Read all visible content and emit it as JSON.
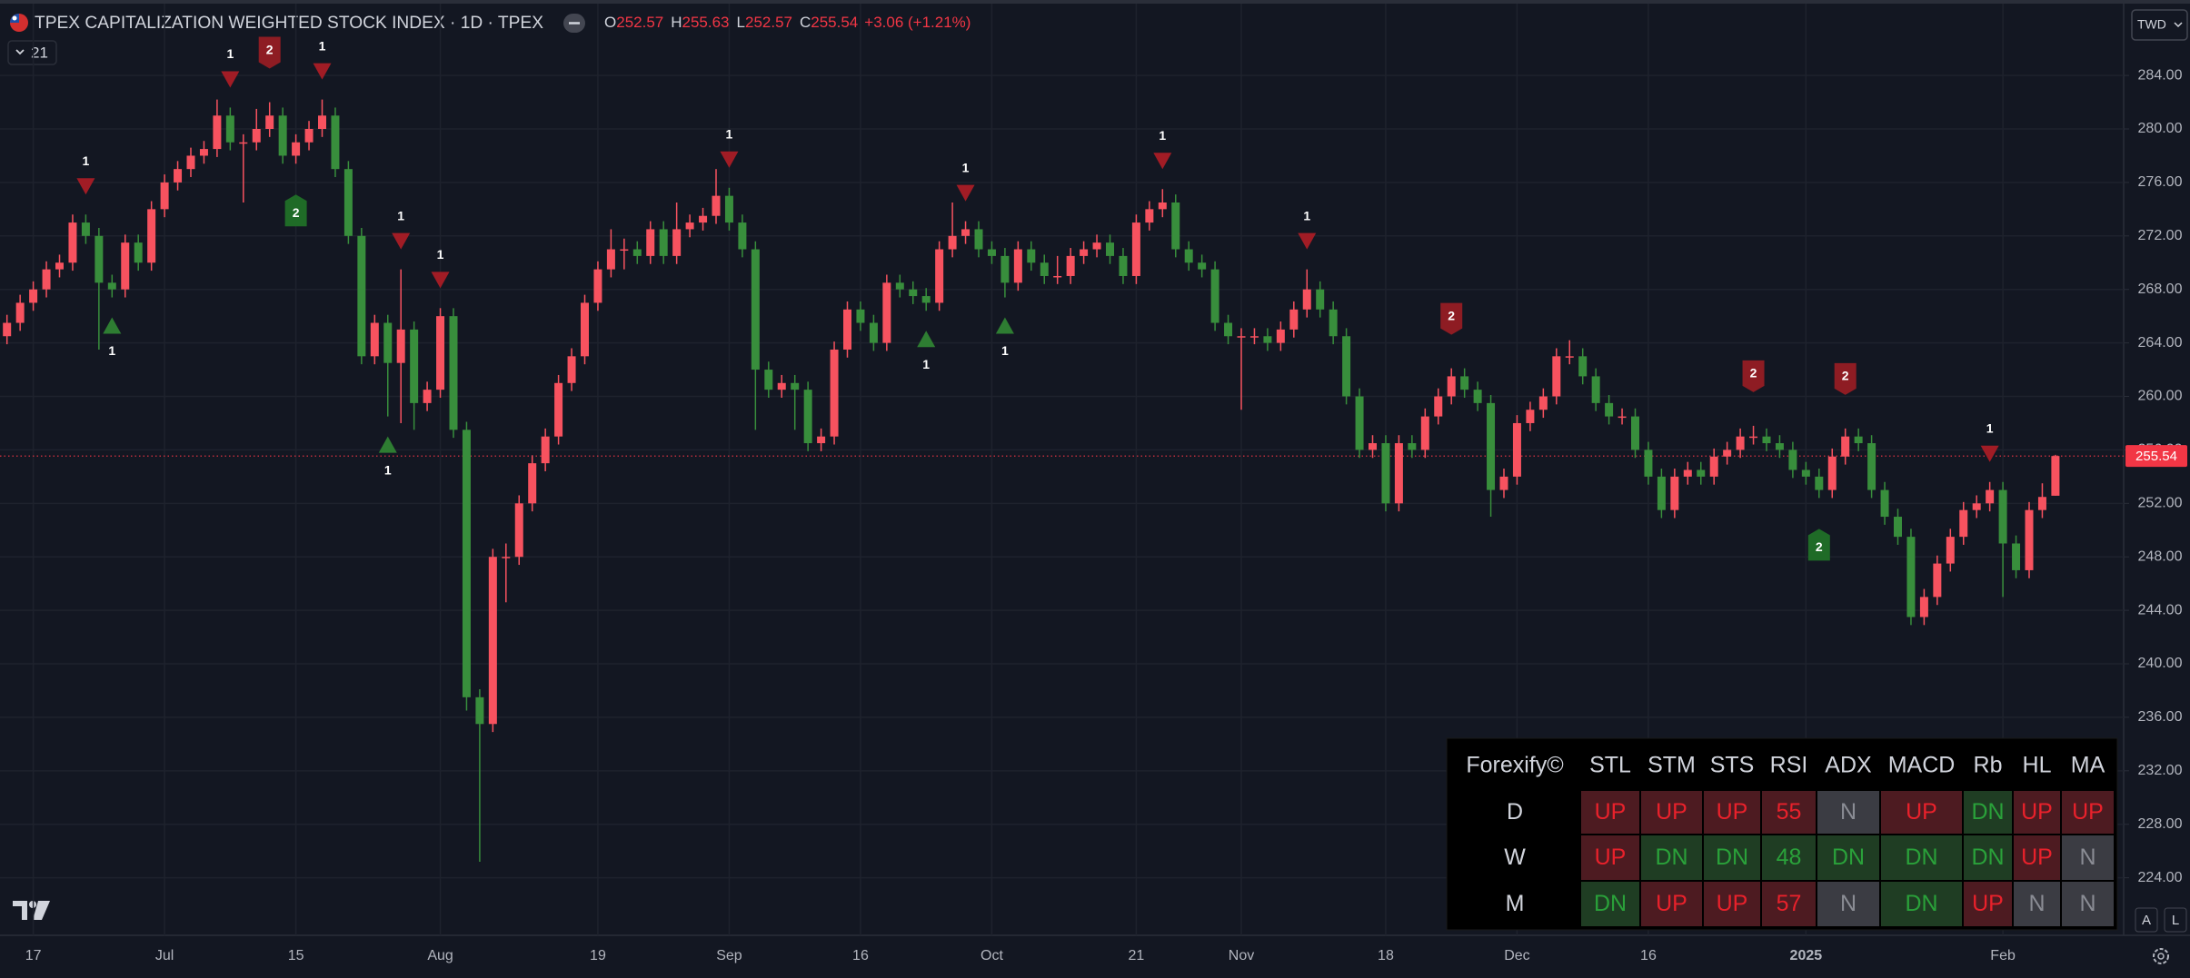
{
  "header": {
    "title": "TPEX CAPITALIZATION WEIGHTED STOCK INDEX · 1D · TPEX",
    "ohlc": [
      {
        "key": "O",
        "value": "252.57"
      },
      {
        "key": "H",
        "value": "255.63"
      },
      {
        "key": "L",
        "value": "252.57"
      },
      {
        "key": "C",
        "value": "255.54"
      }
    ],
    "change": "+3.06 (+1.21%)",
    "indicator_count": "21",
    "currency": "TWD",
    "scale_buttons": [
      "A",
      "L"
    ]
  },
  "chart_data": {
    "type": "candlestick",
    "up_color": "#f7525f",
    "down_color": "#388e3c",
    "grid": true,
    "ylim": [
      219.9,
      289.1
    ],
    "yticks": [
      {
        "value": 224,
        "label": "224.00"
      },
      {
        "value": 228,
        "label": "228.00"
      },
      {
        "value": 232,
        "label": "232.00"
      },
      {
        "value": 236,
        "label": "236.00"
      },
      {
        "value": 240,
        "label": "240.00"
      },
      {
        "value": 244,
        "label": "244.00"
      },
      {
        "value": 248,
        "label": "248.00"
      },
      {
        "value": 252,
        "label": "252.00"
      },
      {
        "value": 256,
        "label": "256.00"
      },
      {
        "value": 260,
        "label": "260.00"
      },
      {
        "value": 264,
        "label": "264.00"
      },
      {
        "value": 268,
        "label": "268.00"
      },
      {
        "value": 272,
        "label": "272.00"
      },
      {
        "value": 276,
        "label": "276.00"
      },
      {
        "value": 280,
        "label": "280.00"
      },
      {
        "value": 284,
        "label": "284.00"
      }
    ],
    "price_tag": "255.54",
    "categories": [
      null,
      null,
      "17",
      null,
      null,
      null,
      null,
      null,
      null,
      null,
      null,
      null,
      "Jul",
      null,
      null,
      null,
      null,
      null,
      null,
      null,
      null,
      null,
      "15",
      null,
      null,
      null,
      null,
      null,
      null,
      null,
      null,
      null,
      null,
      "Aug",
      null,
      null,
      null,
      null,
      null,
      null,
      null,
      null,
      null,
      null,
      null,
      "19",
      null,
      null,
      null,
      null,
      null,
      null,
      null,
      null,
      null,
      "Sep",
      null,
      null,
      null,
      null,
      null,
      null,
      null,
      null,
      null,
      "16",
      null,
      null,
      null,
      null,
      null,
      null,
      null,
      null,
      null,
      "Oct",
      null,
      null,
      null,
      null,
      null,
      null,
      null,
      null,
      null,
      null,
      "21",
      null,
      null,
      null,
      null,
      null,
      null,
      null,
      "Nov",
      null,
      null,
      null,
      null,
      null,
      null,
      null,
      null,
      null,
      null,
      "18",
      null,
      null,
      null,
      null,
      null,
      null,
      null,
      null,
      null,
      "Dec",
      null,
      null,
      null,
      null,
      null,
      null,
      null,
      null,
      null,
      "16",
      null,
      null,
      null,
      null,
      null,
      null,
      null,
      null,
      null,
      null,
      null,
      "2025",
      null,
      null,
      null,
      null,
      null,
      null,
      null,
      null,
      null,
      null,
      null,
      null,
      null,
      null,
      "Feb",
      null,
      null,
      null,
      null
    ],
    "open": [
      264.5,
      265.5,
      267,
      268,
      269.5,
      270,
      273,
      272,
      268.5,
      268,
      271.5,
      270,
      274,
      276,
      277,
      278,
      278.5,
      281,
      279,
      279,
      280,
      281,
      278,
      279,
      280,
      281,
      277,
      272,
      263,
      265.5,
      262.5,
      265,
      259.5,
      260.5,
      266,
      257.5,
      237.5,
      235.5,
      248,
      248,
      252,
      255,
      257,
      261,
      263,
      267,
      269.5,
      271,
      271,
      270.5,
      272.5,
      270.5,
      272.5,
      273,
      273.5,
      275,
      273,
      271,
      262,
      260.5,
      261,
      260.5,
      256.5,
      257,
      263.5,
      266.5,
      265.5,
      264,
      268.5,
      268,
      267.5,
      267,
      271,
      272,
      272.5,
      271,
      270.5,
      268.5,
      271,
      270,
      269,
      269,
      270.5,
      271,
      271.5,
      270.5,
      269,
      273,
      274,
      274.5,
      271,
      270,
      269.5,
      265.5,
      264.5,
      264.5,
      264.5,
      264,
      265,
      266.5,
      268,
      266.5,
      264.5,
      260,
      256,
      256.5,
      252,
      256.5,
      256,
      258.5,
      260,
      261.5,
      260.5,
      259.5,
      253,
      254,
      258,
      259,
      260,
      263,
      263,
      261.5,
      259.5,
      258.5,
      258.5,
      256,
      254,
      251.5,
      254,
      254.5,
      254,
      255.5,
      256,
      257,
      257,
      256.5,
      256,
      254.5,
      254,
      253,
      255.5,
      257,
      256.5,
      253,
      251,
      249.5,
      243.5,
      245,
      247.5,
      249.5,
      251.5,
      252,
      253,
      249,
      247,
      251.5,
      252.57
    ],
    "high": [
      266.1,
      267.6,
      268.6,
      270.1,
      270.6,
      273.6,
      273.6,
      272.6,
      269.1,
      272.1,
      272.1,
      274.6,
      276.6,
      277.6,
      278.6,
      279.1,
      282.2,
      281.6,
      279.6,
      281.5,
      282,
      281.6,
      279.6,
      280.6,
      282.2,
      281.6,
      277.6,
      272.6,
      266.1,
      266.1,
      269.5,
      265.6,
      261.1,
      266.6,
      266.6,
      258.1,
      238.1,
      248.6,
      249,
      252.6,
      255.6,
      257.6,
      261.6,
      263.6,
      267.6,
      270.1,
      272.5,
      271.8,
      271.6,
      273.1,
      273.1,
      274.5,
      273.6,
      274.1,
      277,
      275.6,
      273.6,
      271.6,
      262.6,
      261.6,
      261.6,
      261.1,
      257.6,
      264.1,
      267.1,
      267.1,
      266.1,
      269.1,
      269.1,
      268.6,
      268.1,
      271.6,
      274.5,
      273.1,
      273.1,
      271.6,
      271.1,
      271.6,
      271.6,
      270.6,
      270.5,
      271.1,
      271.6,
      272.1,
      272.1,
      271.1,
      273.6,
      274.6,
      275.5,
      275.1,
      271.6,
      270.6,
      270.1,
      266.1,
      265.1,
      265.1,
      265.1,
      265.6,
      267.1,
      269.5,
      268.6,
      267.1,
      265.1,
      260.6,
      257.1,
      257.1,
      257.1,
      257.1,
      259.1,
      260.6,
      262.1,
      262.1,
      261.1,
      260.1,
      254.6,
      258.6,
      259.6,
      260.6,
      263.6,
      264.2,
      263.6,
      262.1,
      260.1,
      259.1,
      259.1,
      256.6,
      254.6,
      254.6,
      255.1,
      255.1,
      256.1,
      256.6,
      257.6,
      257.8,
      257.6,
      257.1,
      256.6,
      255.1,
      254.6,
      256.1,
      257.6,
      257.6,
      257.1,
      253.6,
      251.6,
      250.1,
      245.6,
      248.1,
      250.1,
      252.1,
      252.6,
      253.6,
      253.6,
      249.6,
      252.1,
      253.5,
      255.63
    ],
    "low": [
      263.9,
      264.9,
      266.4,
      267.4,
      268.9,
      269.4,
      271.4,
      263.5,
      267.4,
      267.4,
      269.4,
      269.4,
      273.4,
      275.4,
      276.4,
      277.4,
      277.9,
      278.4,
      274.5,
      278.4,
      279.4,
      277.4,
      277.4,
      278.4,
      279.4,
      276.4,
      271.4,
      262.4,
      262.4,
      258.5,
      258,
      257.5,
      258.9,
      259.9,
      256.9,
      236.5,
      225.2,
      234.9,
      244.6,
      247.4,
      251.4,
      254.4,
      256.4,
      260.4,
      262.4,
      266.4,
      268.9,
      269.5,
      269.9,
      269.9,
      269.9,
      269.9,
      271.9,
      272.4,
      272.9,
      272.4,
      270.4,
      257.5,
      259.9,
      259.9,
      257.5,
      255.9,
      255.9,
      256.4,
      262.9,
      264.9,
      263.4,
      263.4,
      267.4,
      266.9,
      266.4,
      266.4,
      270.4,
      271.4,
      270.4,
      269.9,
      267.4,
      267.9,
      269.4,
      268.4,
      268.4,
      268.4,
      269.9,
      270.4,
      269.9,
      268.4,
      268.4,
      272.4,
      273.4,
      270.4,
      269.4,
      268.9,
      264.9,
      263.9,
      259,
      263.9,
      263.4,
      263.4,
      264.4,
      265.9,
      265.9,
      263.9,
      259.4,
      255.4,
      255.4,
      251.4,
      251.4,
      255.4,
      255.4,
      257.9,
      259.4,
      259.9,
      258.9,
      251,
      252.4,
      253.4,
      257.4,
      258.4,
      259.4,
      262.4,
      260.9,
      258.9,
      257.9,
      257.9,
      255.4,
      253.4,
      250.9,
      250.9,
      253.4,
      253.4,
      253.4,
      254.9,
      255.4,
      256.4,
      255.9,
      255.4,
      253.9,
      253.4,
      252.4,
      252.4,
      254.9,
      255.9,
      252.4,
      250.4,
      248.9,
      242.9,
      242.9,
      244.4,
      246.9,
      248.9,
      250.9,
      251.4,
      245,
      246.4,
      246.4,
      250.9,
      252.57
    ],
    "close": [
      265.5,
      267,
      268,
      269.5,
      270,
      273,
      272,
      268.5,
      268,
      271.5,
      270,
      274,
      276,
      277,
      278,
      278.5,
      281,
      279,
      279,
      280,
      281,
      278,
      279,
      280,
      281,
      277,
      272,
      263,
      265.5,
      262.5,
      265,
      259.5,
      260.5,
      266,
      257.5,
      237.5,
      235.5,
      248,
      248,
      252,
      255,
      257,
      261,
      263,
      267,
      269.5,
      271,
      271,
      270.5,
      272.5,
      270.5,
      272.5,
      273,
      273.5,
      275,
      273,
      271,
      262,
      260.5,
      261,
      260.5,
      256.5,
      257,
      263.5,
      266.5,
      265.5,
      264,
      268.5,
      268,
      267.5,
      267,
      271,
      272,
      272.5,
      271,
      270.5,
      268.5,
      271,
      270,
      269,
      269,
      270.5,
      271,
      271.5,
      270.5,
      269,
      273,
      274,
      274.5,
      271,
      270,
      269.5,
      265.5,
      264.5,
      264.5,
      264.5,
      264,
      265,
      266.5,
      268,
      266.5,
      264.5,
      260,
      256,
      256.5,
      252,
      256.5,
      256,
      258.5,
      260,
      261.5,
      260.5,
      259.5,
      253,
      254,
      258,
      259,
      260,
      263,
      263,
      261.5,
      259.5,
      258.5,
      258.5,
      256,
      254,
      251.5,
      254,
      254.5,
      254,
      255.5,
      256,
      257,
      257,
      256.5,
      256,
      254.5,
      254,
      253,
      255.5,
      257,
      256.5,
      253,
      251,
      249.5,
      243.5,
      245,
      247.5,
      249.5,
      251.5,
      252,
      253,
      249,
      247,
      251.5,
      252.48,
      255.54
    ],
    "annotations": [
      {
        "label": "1",
        "candle": 6,
        "shape": "triangle",
        "position": "above",
        "color": "#a11c25"
      },
      {
        "label": "1",
        "candle": 8,
        "shape": "triangle",
        "position": "below",
        "color": "#2e7d32"
      },
      {
        "label": "1",
        "candle": 17,
        "shape": "triangle",
        "position": "above",
        "color": "#a11c25"
      },
      {
        "label": "2",
        "candle": 20,
        "shape": "flag",
        "position": "above",
        "color": "#8e1c23"
      },
      {
        "label": "2",
        "candle": 22,
        "shape": "flag",
        "position": "below",
        "color": "#1f6b27"
      },
      {
        "label": "1",
        "candle": 24,
        "shape": "triangle",
        "position": "above",
        "color": "#a11c25"
      },
      {
        "label": "1",
        "candle": 29,
        "shape": "triangle",
        "position": "below",
        "color": "#2e7d32"
      },
      {
        "label": "1",
        "candle": 30,
        "shape": "triangle",
        "position": "above",
        "color": "#a11c25"
      },
      {
        "label": "1",
        "candle": 33,
        "shape": "triangle",
        "position": "above",
        "color": "#a11c25"
      },
      {
        "label": "1",
        "candle": 55,
        "shape": "triangle",
        "position": "above",
        "color": "#a11c25"
      },
      {
        "label": "1",
        "candle": 70,
        "shape": "triangle",
        "position": "below",
        "color": "#2e7d32"
      },
      {
        "label": "1",
        "candle": 73,
        "shape": "triangle",
        "position": "above",
        "color": "#a11c25"
      },
      {
        "label": "1",
        "candle": 76,
        "shape": "triangle",
        "position": "below",
        "color": "#2e7d32"
      },
      {
        "label": "1",
        "candle": 88,
        "shape": "triangle",
        "position": "above",
        "color": "#a11c25"
      },
      {
        "label": "1",
        "candle": 99,
        "shape": "triangle",
        "position": "above",
        "color": "#a11c25"
      },
      {
        "label": "2",
        "candle": 110,
        "shape": "flag",
        "position": "above",
        "color": "#8e1c23"
      },
      {
        "label": "2",
        "candle": 133,
        "shape": "flag",
        "position": "above",
        "color": "#8e1c23"
      },
      {
        "label": "2",
        "candle": 138,
        "shape": "flag",
        "position": "below",
        "color": "#1f6b27"
      },
      {
        "label": "2",
        "candle": 140,
        "shape": "flag",
        "position": "above",
        "color": "#8e1c23"
      },
      {
        "label": "1",
        "candle": 151,
        "shape": "triangle",
        "position": "above",
        "color": "#a11c25"
      }
    ]
  },
  "table": {
    "header": [
      "Forexify©",
      "STL",
      "STM",
      "STS",
      "RSI",
      "ADX",
      "MACD",
      "Rb",
      "HL",
      "MA"
    ],
    "rows": [
      {
        "label": "D",
        "cells": [
          {
            "text": "UP",
            "color": "#e8212b",
            "fill": "#4d1b21"
          },
          {
            "text": "UP",
            "color": "#e8212b",
            "fill": "#4d1b21"
          },
          {
            "text": "UP",
            "color": "#e8212b",
            "fill": "#4d1b21"
          },
          {
            "text": "55",
            "color": "#e8212b",
            "fill": "#4d1b21"
          },
          {
            "text": "N",
            "color": "#8a8c94",
            "fill": "#3b3c43"
          },
          {
            "text": "UP",
            "color": "#e8212b",
            "fill": "#4d1b21"
          },
          {
            "text": "DN",
            "color": "#2aa13a",
            "fill": "#1f3d23"
          },
          {
            "text": "UP",
            "color": "#e8212b",
            "fill": "#4d1b21"
          },
          {
            "text": "UP",
            "color": "#e8212b",
            "fill": "#4d1b21"
          }
        ]
      },
      {
        "label": "W",
        "cells": [
          {
            "text": "UP",
            "color": "#e8212b",
            "fill": "#4d1b21"
          },
          {
            "text": "DN",
            "color": "#2aa13a",
            "fill": "#1f3d23"
          },
          {
            "text": "DN",
            "color": "#2aa13a",
            "fill": "#1f3d23"
          },
          {
            "text": "48",
            "color": "#2aa13a",
            "fill": "#1f3d23"
          },
          {
            "text": "DN",
            "color": "#2aa13a",
            "fill": "#1f3d23"
          },
          {
            "text": "DN",
            "color": "#2aa13a",
            "fill": "#1f3d23"
          },
          {
            "text": "DN",
            "color": "#2aa13a",
            "fill": "#1f3d23"
          },
          {
            "text": "UP",
            "color": "#e8212b",
            "fill": "#4d1b21"
          },
          {
            "text": "N",
            "color": "#8a8c94",
            "fill": "#3b3c43"
          }
        ]
      },
      {
        "label": "M",
        "cells": [
          {
            "text": "DN",
            "color": "#2aa13a",
            "fill": "#1f3d23"
          },
          {
            "text": "UP",
            "color": "#e8212b",
            "fill": "#4d1b21"
          },
          {
            "text": "UP",
            "color": "#e8212b",
            "fill": "#4d1b21"
          },
          {
            "text": "57",
            "color": "#e8212b",
            "fill": "#4d1b21"
          },
          {
            "text": "N",
            "color": "#8a8c94",
            "fill": "#3b3c43"
          },
          {
            "text": "DN",
            "color": "#2aa13a",
            "fill": "#1f3d23"
          },
          {
            "text": "UP",
            "color": "#e8212b",
            "fill": "#4d1b21"
          },
          {
            "text": "N",
            "color": "#8a8c94",
            "fill": "#3b3c43"
          },
          {
            "text": "N",
            "color": "#8a8c94",
            "fill": "#3b3c43"
          }
        ]
      }
    ]
  }
}
